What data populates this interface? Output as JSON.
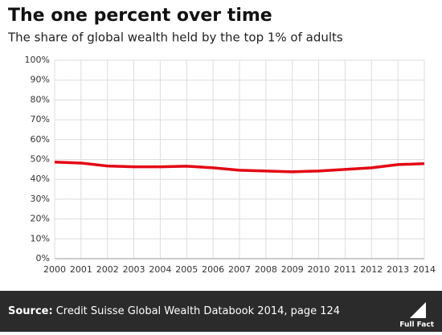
{
  "chart_data": {
    "type": "line",
    "title": "The one percent over time",
    "subtitle": "The share of global wealth held by the top 1% of adults",
    "x": [
      2000,
      2001,
      2002,
      2003,
      2004,
      2005,
      2006,
      2007,
      2008,
      2009,
      2010,
      2011,
      2012,
      2013,
      2014
    ],
    "xlim": [
      2000,
      2014
    ],
    "xticks": [
      2000,
      2001,
      2002,
      2003,
      2004,
      2005,
      2006,
      2007,
      2008,
      2009,
      2010,
      2011,
      2012,
      2013,
      2014
    ],
    "series": [
      {
        "name": "Top 1% share",
        "color": "#e30613",
        "values": [
          48.7,
          48.2,
          46.7,
          46.3,
          46.3,
          46.6,
          45.8,
          44.6,
          44.2,
          43.8,
          44.2,
          45.0,
          45.8,
          47.4,
          47.9
        ]
      }
    ],
    "ylim": [
      0,
      100
    ],
    "yticks": [
      {
        "value": 0,
        "label": "0%"
      },
      {
        "value": 10,
        "label": "10%"
      },
      {
        "value": 20,
        "label": "20%"
      },
      {
        "value": 30,
        "label": "30%"
      },
      {
        "value": 40,
        "label": "40%"
      },
      {
        "value": 50,
        "label": "50%"
      },
      {
        "value": 60,
        "label": "60%"
      },
      {
        "value": 70,
        "label": "70%"
      },
      {
        "value": 80,
        "label": "80%"
      },
      {
        "value": 90,
        "label": "90%"
      },
      {
        "value": 100,
        "label": "100%"
      }
    ],
    "grid": true
  },
  "footer": {
    "source_label": "Source:",
    "source_text": "Credit Suisse Global Wealth Databook 2014, page 124",
    "logo": "Full Fact"
  }
}
